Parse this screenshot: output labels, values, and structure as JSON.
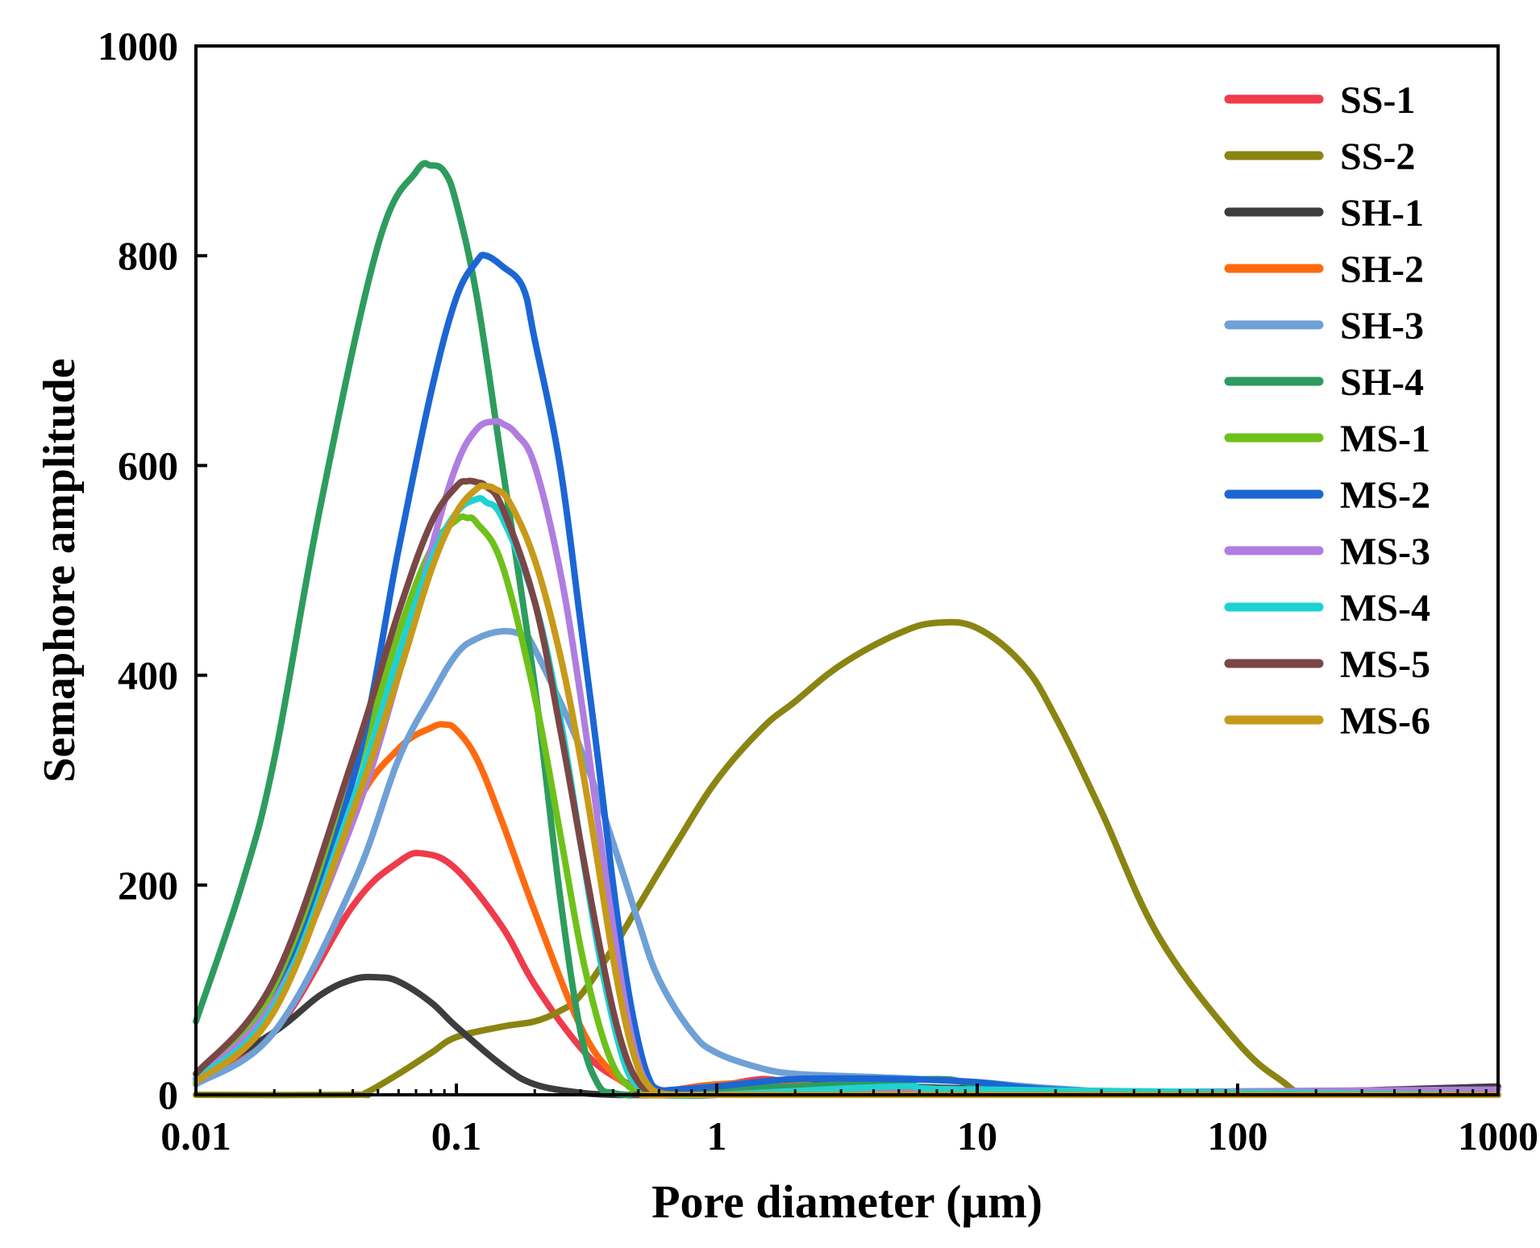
{
  "chart_data": {
    "type": "line",
    "title": "",
    "xlabel": "Pore diameter (μm)",
    "ylabel": "Semaphore amplitude",
    "xscale": "log",
    "xlim": [
      0.01,
      1000
    ],
    "ylim": [
      0,
      1000
    ],
    "x_ticks": [
      {
        "value": 0.01,
        "label": "0.01"
      },
      {
        "value": 0.1,
        "label": "0.1"
      },
      {
        "value": 1,
        "label": "1"
      },
      {
        "value": 10,
        "label": "10"
      },
      {
        "value": 100,
        "label": "100"
      },
      {
        "value": 1000,
        "label": "1000"
      }
    ],
    "y_ticks": [
      {
        "value": 0,
        "label": "0"
      },
      {
        "value": 200,
        "label": "200"
      },
      {
        "value": 400,
        "label": "400"
      },
      {
        "value": 600,
        "label": "600"
      },
      {
        "value": 800,
        "label": "800"
      },
      {
        "value": 1000,
        "label": "1000"
      }
    ],
    "legend_position": "top-right",
    "series": [
      {
        "name": "SS-1",
        "color": "#ef3b4b",
        "x": [
          0.01,
          0.02,
          0.04,
          0.06,
          0.075,
          0.1,
          0.15,
          0.2,
          0.3,
          0.4,
          0.55,
          0.7,
          1,
          1.5,
          2,
          3,
          5,
          10,
          50,
          1000
        ],
        "y": [
          15,
          60,
          180,
          222,
          230,
          215,
          160,
          105,
          45,
          18,
          5,
          3,
          8,
          15,
          10,
          6,
          5,
          3,
          1,
          0
        ]
      },
      {
        "name": "SS-2",
        "color": "#8a8512",
        "x": [
          0.01,
          0.04,
          0.045,
          0.06,
          0.08,
          0.1,
          0.15,
          0.2,
          0.25,
          0.3,
          0.4,
          0.5,
          0.7,
          1,
          1.5,
          2,
          3,
          5,
          7,
          10,
          15,
          20,
          30,
          50,
          100,
          150,
          180,
          300,
          1000
        ],
        "y": [
          0,
          0,
          2,
          20,
          40,
          55,
          65,
          70,
          80,
          95,
          140,
          180,
          240,
          300,
          350,
          375,
          410,
          440,
          450,
          445,
          410,
          360,
          270,
          150,
          50,
          12,
          2,
          0,
          0
        ]
      },
      {
        "name": "SH-1",
        "color": "#3d3d3d",
        "x": [
          0.01,
          0.02,
          0.03,
          0.04,
          0.05,
          0.06,
          0.08,
          0.1,
          0.15,
          0.2,
          0.3,
          0.4,
          0.5,
          1,
          2,
          5,
          10,
          100,
          1000
        ],
        "y": [
          15,
          60,
          95,
          110,
          112,
          108,
          88,
          65,
          28,
          10,
          2,
          0,
          0,
          0,
          10,
          8,
          6,
          2,
          8
        ]
      },
      {
        "name": "SH-2",
        "color": "#ff6a10",
        "x": [
          0.01,
          0.02,
          0.04,
          0.06,
          0.08,
          0.09,
          0.1,
          0.12,
          0.15,
          0.2,
          0.3,
          0.4,
          0.5,
          0.6,
          0.7,
          1,
          2,
          5,
          1000
        ],
        "y": [
          20,
          100,
          270,
          330,
          350,
          353,
          348,
          320,
          260,
          175,
          65,
          20,
          6,
          3,
          5,
          10,
          12,
          5,
          0
        ]
      },
      {
        "name": "SH-3",
        "color": "#6fa0d6",
        "x": [
          0.01,
          0.02,
          0.04,
          0.06,
          0.08,
          0.1,
          0.12,
          0.15,
          0.18,
          0.2,
          0.3,
          0.4,
          0.5,
          0.6,
          0.8,
          1,
          1.5,
          2,
          3,
          5,
          10,
          20,
          50,
          1000
        ],
        "y": [
          10,
          60,
          200,
          320,
          380,
          420,
          435,
          442,
          438,
          425,
          330,
          240,
          165,
          110,
          60,
          40,
          25,
          20,
          18,
          16,
          12,
          6,
          2,
          0
        ]
      },
      {
        "name": "SH-4",
        "color": "#2e9c5e",
        "x": [
          0.01,
          0.015,
          0.02,
          0.03,
          0.05,
          0.07,
          0.08,
          0.09,
          0.1,
          0.12,
          0.15,
          0.2,
          0.25,
          0.3,
          0.35,
          0.4,
          0.45,
          0.5,
          1,
          3,
          7,
          10,
          20,
          1000
        ],
        "y": [
          70,
          200,
          320,
          560,
          810,
          880,
          886,
          880,
          850,
          760,
          600,
          390,
          190,
          60,
          10,
          2,
          0,
          0,
          5,
          10,
          15,
          10,
          4,
          0
        ]
      },
      {
        "name": "MS-1",
        "color": "#6ec11a",
        "x": [
          0.01,
          0.02,
          0.04,
          0.06,
          0.08,
          0.1,
          0.11,
          0.12,
          0.15,
          0.2,
          0.25,
          0.3,
          0.35,
          0.4,
          0.45,
          0.5,
          0.55,
          0.7,
          1,
          1000
        ],
        "y": [
          20,
          100,
          300,
          440,
          520,
          548,
          550,
          545,
          505,
          380,
          250,
          140,
          70,
          28,
          10,
          3,
          0,
          0,
          0,
          0
        ]
      },
      {
        "name": "MS-2",
        "color": "#1c66d4",
        "x": [
          0.01,
          0.02,
          0.04,
          0.06,
          0.08,
          0.1,
          0.12,
          0.13,
          0.15,
          0.18,
          0.2,
          0.25,
          0.3,
          0.35,
          0.4,
          0.45,
          0.5,
          0.55,
          0.6,
          0.7,
          1,
          2,
          5,
          10,
          20,
          100,
          1000
        ],
        "y": [
          15,
          90,
          300,
          520,
          670,
          760,
          795,
          800,
          790,
          770,
          720,
          600,
          450,
          320,
          200,
          110,
          50,
          15,
          5,
          5,
          8,
          15,
          15,
          12,
          5,
          1,
          0
        ]
      },
      {
        "name": "MS-3",
        "color": "#b07de0",
        "x": [
          0.01,
          0.02,
          0.04,
          0.06,
          0.08,
          0.1,
          0.12,
          0.14,
          0.15,
          0.17,
          0.2,
          0.25,
          0.3,
          0.35,
          0.4,
          0.45,
          0.5,
          0.55,
          0.6,
          0.7,
          1,
          1000
        ],
        "y": [
          15,
          90,
          260,
          400,
          520,
          600,
          635,
          642,
          640,
          630,
          600,
          500,
          380,
          260,
          160,
          80,
          30,
          8,
          2,
          0,
          0,
          5
        ]
      },
      {
        "name": "MS-4",
        "color": "#1ed2d2",
        "x": [
          0.01,
          0.02,
          0.04,
          0.06,
          0.08,
          0.1,
          0.12,
          0.13,
          0.15,
          0.2,
          0.25,
          0.3,
          0.35,
          0.4,
          0.45,
          0.5,
          0.55,
          0.6,
          1,
          5,
          10,
          1000
        ],
        "y": [
          15,
          85,
          280,
          420,
          510,
          555,
          568,
          565,
          550,
          470,
          360,
          240,
          140,
          70,
          25,
          8,
          2,
          0,
          0,
          8,
          5,
          0
        ]
      },
      {
        "name": "MS-5",
        "color": "#7a4747",
        "x": [
          0.01,
          0.02,
          0.04,
          0.06,
          0.08,
          0.1,
          0.11,
          0.12,
          0.13,
          0.15,
          0.2,
          0.25,
          0.3,
          0.35,
          0.4,
          0.45,
          0.5,
          0.55,
          0.6,
          1,
          1000
        ],
        "y": [
          20,
          110,
          320,
          460,
          545,
          580,
          585,
          584,
          580,
          560,
          470,
          350,
          240,
          150,
          80,
          35,
          12,
          3,
          0,
          0,
          0
        ]
      },
      {
        "name": "MS-6",
        "color": "#c79a1a",
        "x": [
          0.01,
          0.02,
          0.04,
          0.06,
          0.08,
          0.1,
          0.12,
          0.13,
          0.14,
          0.16,
          0.2,
          0.25,
          0.3,
          0.35,
          0.4,
          0.45,
          0.5,
          0.55,
          0.6,
          0.7,
          1,
          1000
        ],
        "y": [
          12,
          80,
          270,
          400,
          500,
          555,
          578,
          580,
          578,
          565,
          510,
          420,
          320,
          220,
          130,
          65,
          25,
          8,
          2,
          0,
          0,
          0
        ]
      }
    ]
  }
}
